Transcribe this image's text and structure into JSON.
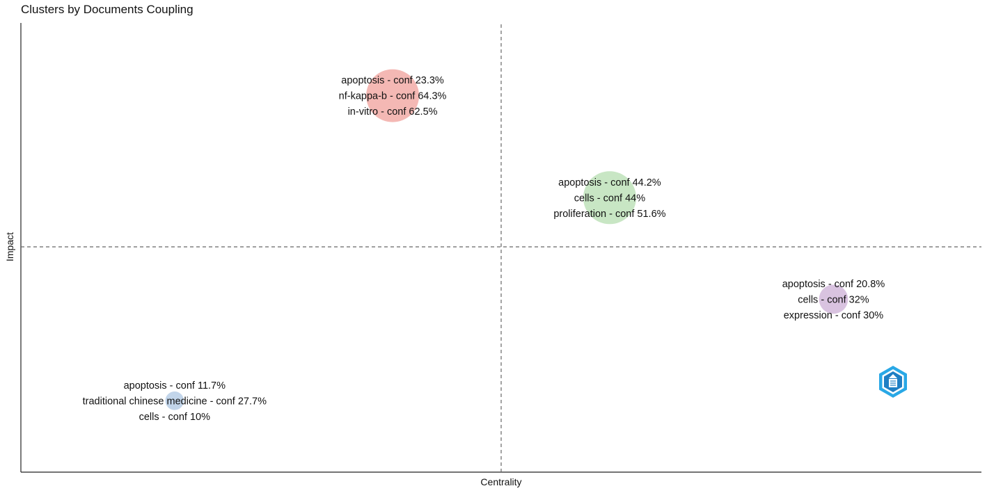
{
  "chart_data": {
    "type": "scatter",
    "title": "Clusters by Documents Coupling",
    "xlabel": "Centrality",
    "ylabel": "Impact",
    "grid": false,
    "reference_lines": [
      "vertical dashed at centrality midpoint",
      "horizontal dashed at impact midpoint"
    ],
    "clusters": [
      {
        "color": "#f4b8b4",
        "labels": [
          "apoptosis - conf 23.3%",
          "nf-kappa-b - conf 64.3%",
          "in-vitro - conf 62.5%"
        ],
        "centrality": 0.387,
        "impact": 0.838,
        "size": 1.0
      },
      {
        "color": "#c8e6c4",
        "labels": [
          "apoptosis - conf 44.2%",
          "cells - conf 44%",
          "proliferation - conf 51.6%"
        ],
        "centrality": 0.613,
        "impact": 0.611,
        "size": 1.0
      },
      {
        "color": "#d9c3e0",
        "labels": [
          "apoptosis - conf 20.8%",
          "cells - conf 32%",
          "expression - conf 30%"
        ],
        "centrality": 0.846,
        "impact": 0.385,
        "size": 0.55
      },
      {
        "color": "#c2d5ea",
        "labels": [
          "apoptosis - conf 11.7%",
          "traditional chinese medicine - conf 27.7%",
          "cells - conf 10%"
        ],
        "centrality": 0.16,
        "impact": 0.159,
        "size": 0.35
      }
    ],
    "watermark_icon": "bibliometrix-logo-icon"
  }
}
